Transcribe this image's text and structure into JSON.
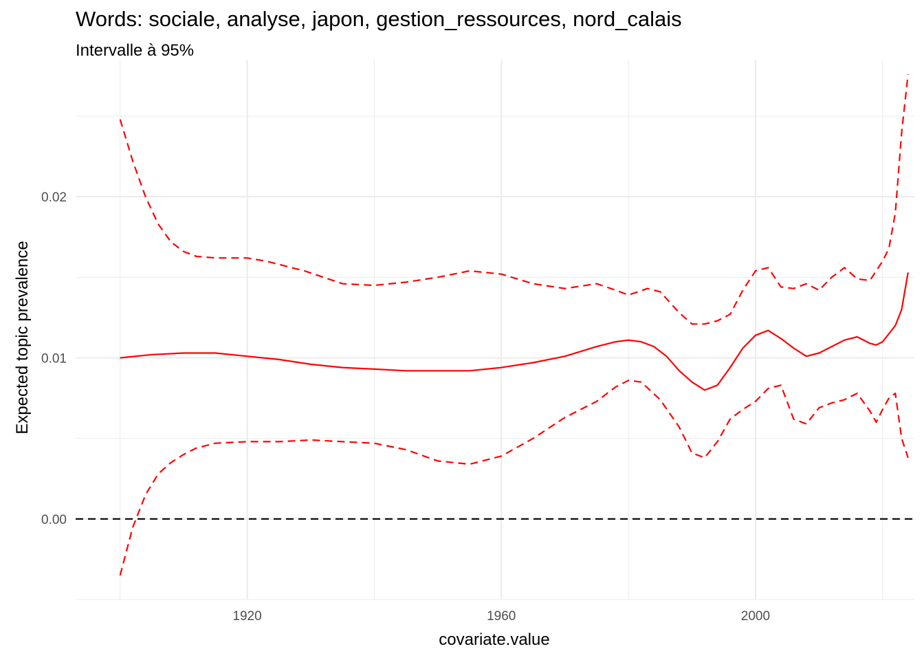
{
  "chart_data": {
    "type": "line",
    "title": "Words: sociale, analyse, japon, gestion_ressources, nord_calais",
    "subtitle": "Intervalle à 95%",
    "xlabel": "covariate.value",
    "ylabel": "Expected topic prevalence",
    "xlim": [
      1893,
      2025
    ],
    "ylim": [
      -0.005,
      0.0285
    ],
    "x_ticks": [
      1920,
      1960,
      2000
    ],
    "x_tick_labels": [
      "1920",
      "1960",
      "2000"
    ],
    "y_ticks": [
      0.0,
      0.01,
      0.02
    ],
    "y_tick_labels": [
      "0.00",
      "0.01",
      "0.02"
    ],
    "grid": true,
    "reference_line": {
      "y": 0,
      "style": "dashed",
      "color": "#000000"
    },
    "colors": {
      "series": "#ff0000",
      "grid": "#ebebeb"
    },
    "series": [
      {
        "style": "solid",
        "x": [
          1900,
          1905,
          1910,
          1915,
          1920,
          1925,
          1930,
          1935,
          1940,
          1945,
          1950,
          1955,
          1960,
          1965,
          1970,
          1975,
          1978,
          1980,
          1982,
          1984,
          1986,
          1988,
          1990,
          1992,
          1994,
          1996,
          1998,
          2000,
          2002,
          2004,
          2006,
          2008,
          2010,
          2012,
          2014,
          2016,
          2018,
          2019,
          2020,
          2021,
          2022,
          2023,
          2024
        ],
        "y": [
          0.01,
          0.0102,
          0.0103,
          0.0103,
          0.0101,
          0.0099,
          0.0096,
          0.0094,
          0.0093,
          0.0092,
          0.0092,
          0.0092,
          0.0094,
          0.0097,
          0.0101,
          0.0107,
          0.011,
          0.0111,
          0.011,
          0.0107,
          0.0101,
          0.0092,
          0.0085,
          0.008,
          0.0083,
          0.0094,
          0.0106,
          0.0114,
          0.0117,
          0.0112,
          0.0106,
          0.0101,
          0.0103,
          0.0107,
          0.0111,
          0.0113,
          0.0109,
          0.0108,
          0.011,
          0.0115,
          0.012,
          0.013,
          0.0153
        ]
      },
      {
        "style": "dashed",
        "x": [
          1900,
          1902,
          1904,
          1906,
          1908,
          1910,
          1912,
          1915,
          1918,
          1920,
          1923,
          1926,
          1929,
          1932,
          1935,
          1940,
          1945,
          1950,
          1955,
          1960,
          1965,
          1970,
          1975,
          1978,
          1980,
          1983,
          1985,
          1988,
          1990,
          1992,
          1994,
          1996,
          1998,
          2000,
          2002,
          2004,
          2006,
          2008,
          2010,
          2012,
          2014,
          2016,
          2018,
          2020,
          2021,
          2022,
          2023,
          2024
        ],
        "y": [
          0.0248,
          0.0222,
          0.02,
          0.0183,
          0.0172,
          0.0166,
          0.0163,
          0.0162,
          0.0162,
          0.0162,
          0.016,
          0.0157,
          0.0154,
          0.015,
          0.0146,
          0.0145,
          0.0147,
          0.015,
          0.0154,
          0.0152,
          0.0146,
          0.0143,
          0.0146,
          0.0142,
          0.0139,
          0.0143,
          0.0141,
          0.0128,
          0.0121,
          0.0121,
          0.0123,
          0.0127,
          0.0142,
          0.0154,
          0.0156,
          0.0144,
          0.0143,
          0.0146,
          0.0142,
          0.015,
          0.0156,
          0.0149,
          0.0148,
          0.016,
          0.0168,
          0.019,
          0.024,
          0.0276
        ]
      },
      {
        "style": "dashed",
        "x": [
          1900,
          1902,
          1904,
          1906,
          1908,
          1910,
          1912,
          1915,
          1920,
          1925,
          1930,
          1935,
          1940,
          1945,
          1950,
          1955,
          1960,
          1965,
          1970,
          1975,
          1978,
          1980,
          1982,
          1985,
          1988,
          1990,
          1992,
          1994,
          1996,
          1998,
          2000,
          2002,
          2004,
          2006,
          2008,
          2010,
          2012,
          2014,
          2016,
          2018,
          2019,
          2020,
          2021,
          2022,
          2023,
          2024
        ],
        "y": [
          -0.0035,
          -0.0005,
          0.0015,
          0.0028,
          0.0035,
          0.004,
          0.0044,
          0.0047,
          0.0048,
          0.0048,
          0.0049,
          0.0048,
          0.0047,
          0.0043,
          0.0036,
          0.0034,
          0.0039,
          0.005,
          0.0063,
          0.0073,
          0.0082,
          0.0086,
          0.0085,
          0.0074,
          0.0057,
          0.0041,
          0.0038,
          0.0048,
          0.0062,
          0.0068,
          0.0073,
          0.0081,
          0.0083,
          0.0062,
          0.0059,
          0.0069,
          0.0072,
          0.0074,
          0.0078,
          0.0067,
          0.006,
          0.0068,
          0.0075,
          0.0078,
          0.005,
          0.0038
        ]
      }
    ]
  }
}
